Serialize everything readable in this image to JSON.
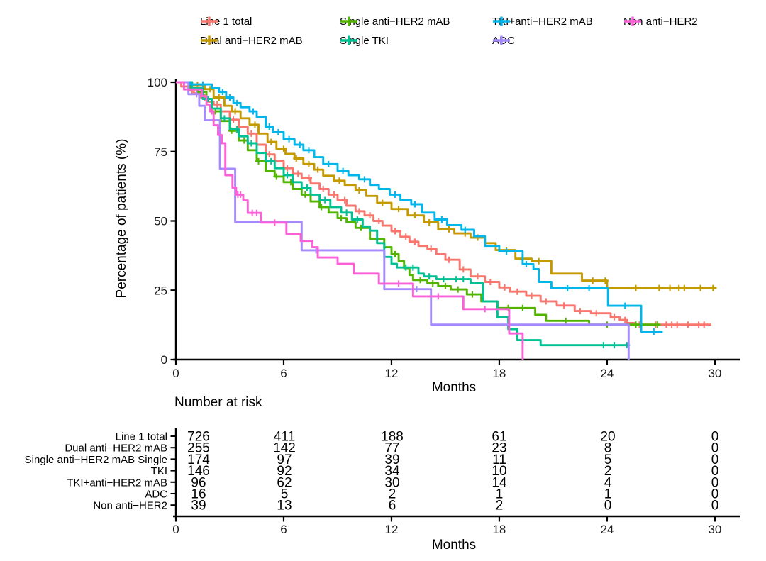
{
  "figure": {
    "y_axis_title": "Percentage of patients (%)",
    "x_axis_title": "Months",
    "risk_header": "Number at risk",
    "risk_x_axis_title": "Months",
    "legend_rows": [
      [
        "Line 1 total",
        "Single anti−HER2 mAB",
        "TKI+anti−HER2 mAB",
        "Non anti−HER2"
      ],
      [
        "Dual anti−HER2 mAB",
        "Single TKI",
        "ADC"
      ]
    ]
  },
  "chart_data": {
    "type": "line",
    "subtype": "kaplan_meier_step",
    "title": "",
    "xlabel": "Months",
    "ylabel": "Percentage of patients (%)",
    "xlim": [
      0,
      30
    ],
    "xticks": [
      0,
      6,
      12,
      18,
      24,
      30
    ],
    "ylim": [
      0,
      100
    ],
    "yticks": [
      100,
      75,
      50,
      25,
      0
    ],
    "grid": false,
    "legend_position": "top",
    "series": [
      {
        "name": "Line 1 total",
        "color": "#F8766D",
        "points": [
          [
            0,
            100
          ],
          [
            0.3,
            98.5
          ],
          [
            0.7,
            97
          ],
          [
            1,
            96
          ],
          [
            1.4,
            94.5
          ],
          [
            1.8,
            93
          ],
          [
            2.1,
            92
          ],
          [
            2.5,
            89.5
          ],
          [
            3,
            86.5
          ],
          [
            3.5,
            84
          ],
          [
            4,
            81.5
          ],
          [
            4.5,
            77.5
          ],
          [
            5,
            74
          ],
          [
            5.5,
            71.5
          ],
          [
            6,
            69
          ],
          [
            6.5,
            67
          ],
          [
            7,
            65.5
          ],
          [
            7.5,
            63.5
          ],
          [
            8,
            61.5
          ],
          [
            8.5,
            59.5
          ],
          [
            9,
            57.5
          ],
          [
            9.5,
            55.5
          ],
          [
            10,
            53.5
          ],
          [
            10.5,
            52
          ],
          [
            11,
            50
          ],
          [
            11.5,
            48.3
          ],
          [
            12,
            46.3
          ],
          [
            12.5,
            44.3
          ],
          [
            13,
            42.5
          ],
          [
            13.5,
            41
          ],
          [
            14,
            40
          ],
          [
            14.5,
            38
          ],
          [
            15,
            36
          ],
          [
            15.8,
            32.5
          ],
          [
            16.4,
            30
          ],
          [
            17.2,
            28
          ],
          [
            18,
            26
          ],
          [
            18.6,
            24.5
          ],
          [
            19.5,
            23
          ],
          [
            20.3,
            21
          ],
          [
            21.2,
            19.5
          ],
          [
            22.2,
            17.5
          ],
          [
            23.1,
            16.7
          ],
          [
            24.2,
            15.3
          ],
          [
            24.7,
            14.3
          ],
          [
            25.1,
            13.2
          ],
          [
            25.5,
            12.6
          ],
          [
            29.8,
            12.6
          ]
        ],
        "censors": [
          0.9,
          1.6,
          2.3,
          3.2,
          4.2,
          5.2,
          6.2,
          6.8,
          7.4,
          8.2,
          8.8,
          9.4,
          10.2,
          10.8,
          11.3,
          12.2,
          12.8,
          13.3,
          14.2,
          15.2,
          16,
          16.8,
          17.5,
          18.3,
          19,
          19.8,
          20.6,
          21.6,
          22.5,
          23.4,
          24.4,
          25,
          25.8,
          26.7,
          27.3,
          27.6,
          27.9,
          28.5,
          29.1,
          29.4
        ]
      },
      {
        "name": "Dual anti−HER2 mAB",
        "color": "#C49A00",
        "points": [
          [
            0,
            100
          ],
          [
            0.9,
            99
          ],
          [
            1.6,
            97.5
          ],
          [
            2.1,
            94.5
          ],
          [
            2.7,
            91.5
          ],
          [
            3.1,
            89.5
          ],
          [
            3.6,
            87
          ],
          [
            4.1,
            84.7
          ],
          [
            4.6,
            81.5
          ],
          [
            5.1,
            78.5
          ],
          [
            5.6,
            76
          ],
          [
            6.1,
            74.2
          ],
          [
            6.6,
            72.5
          ],
          [
            7.1,
            70.5
          ],
          [
            7.7,
            68.5
          ],
          [
            8.2,
            66.3
          ],
          [
            8.8,
            64.5
          ],
          [
            9.4,
            63
          ],
          [
            10,
            61
          ],
          [
            10.6,
            59
          ],
          [
            11.2,
            56.5
          ],
          [
            12,
            54.3
          ],
          [
            12.9,
            52
          ],
          [
            13.8,
            49.5
          ],
          [
            14.6,
            47
          ],
          [
            15.5,
            45.5
          ],
          [
            16.4,
            44
          ],
          [
            17.2,
            42
          ],
          [
            17.8,
            39.5
          ],
          [
            18.9,
            36.4
          ],
          [
            19.8,
            35.5
          ],
          [
            20.9,
            31
          ],
          [
            22.6,
            28.5
          ],
          [
            24,
            25.8
          ],
          [
            30.1,
            25.8
          ]
        ],
        "censors": [
          1.2,
          1.9,
          2.4,
          3.3,
          4.4,
          5.3,
          6,
          6.7,
          7.4,
          7.9,
          9.1,
          10.2,
          11.5,
          12.4,
          13.3,
          14.1,
          15.2,
          16.1,
          16.8,
          18.4,
          19.3,
          20.2,
          23.2,
          23.9,
          25.6,
          26.9,
          27.5,
          28,
          28.3,
          29.2,
          29.9
        ]
      },
      {
        "name": "Single anti−HER2 mAB",
        "color": "#53B400",
        "points": [
          [
            0,
            100
          ],
          [
            0.8,
            98
          ],
          [
            1.2,
            96.5
          ],
          [
            1.7,
            94
          ],
          [
            2,
            89.5
          ],
          [
            2.5,
            86
          ],
          [
            3,
            82.5
          ],
          [
            3.5,
            79
          ],
          [
            4,
            75.5
          ],
          [
            4.5,
            71.5
          ],
          [
            5,
            68
          ],
          [
            5.5,
            66
          ],
          [
            6,
            64
          ],
          [
            6.5,
            61.5
          ],
          [
            7,
            59.5
          ],
          [
            7.5,
            57
          ],
          [
            8,
            55
          ],
          [
            8.5,
            53
          ],
          [
            9,
            51
          ],
          [
            9.5,
            49.5
          ],
          [
            10,
            47.5
          ],
          [
            10.8,
            43.5
          ],
          [
            11.6,
            40.5
          ],
          [
            12,
            38
          ],
          [
            12.4,
            35.5
          ],
          [
            12.7,
            33
          ],
          [
            13,
            30.5
          ],
          [
            13.2,
            28.7
          ],
          [
            14,
            27.5
          ],
          [
            14.6,
            26.5
          ],
          [
            15.3,
            25.3
          ],
          [
            16.2,
            23.5
          ],
          [
            17,
            21
          ],
          [
            17.9,
            18.6
          ],
          [
            20,
            16.1
          ],
          [
            20.6,
            14
          ],
          [
            23,
            12.6
          ],
          [
            26.9,
            12.6
          ]
        ],
        "censors": [
          1.5,
          2.2,
          3.1,
          3.8,
          4.6,
          5.6,
          6.4,
          7.2,
          8.1,
          9.2,
          10.3,
          11.2,
          12.2,
          13.6,
          14.3,
          15,
          15.7,
          16.5,
          18.5,
          19.3,
          21.7,
          24,
          25.6,
          26.8
        ]
      },
      {
        "name": "Single TKI",
        "color": "#00C094",
        "points": [
          [
            0,
            100
          ],
          [
            0.9,
            98
          ],
          [
            1.5,
            94
          ],
          [
            2,
            90.5
          ],
          [
            2.5,
            87
          ],
          [
            3,
            83
          ],
          [
            3.5,
            80.5
          ],
          [
            4,
            78
          ],
          [
            4.5,
            74.5
          ],
          [
            5,
            71.5
          ],
          [
            5.5,
            69
          ],
          [
            6,
            66.5
          ],
          [
            6.5,
            64
          ],
          [
            7,
            62
          ],
          [
            7.5,
            59.5
          ],
          [
            8,
            57.5
          ],
          [
            8.6,
            55
          ],
          [
            9.2,
            53
          ],
          [
            9.8,
            50.5
          ],
          [
            10.4,
            48
          ],
          [
            10.8,
            46.5
          ],
          [
            11.2,
            42
          ],
          [
            11.6,
            37
          ],
          [
            12,
            34.5
          ],
          [
            12.3,
            33.2
          ],
          [
            13.5,
            31
          ],
          [
            13.8,
            30
          ],
          [
            14.5,
            29
          ],
          [
            16.4,
            27.5
          ],
          [
            17.1,
            21
          ],
          [
            17.9,
            15.3
          ],
          [
            18.5,
            11
          ],
          [
            19,
            7
          ],
          [
            20.3,
            5.2
          ],
          [
            25.2,
            5.2
          ]
        ],
        "censors": [
          1.8,
          2.7,
          3.4,
          4.2,
          5.3,
          6.2,
          7.3,
          8.3,
          9.5,
          10.1,
          12.8,
          13.2,
          14.1,
          14.9,
          15.6,
          16,
          23.8,
          24.4,
          25.1
        ]
      },
      {
        "name": "TKI+anti−HER2 mAB",
        "color": "#00B6EB",
        "points": [
          [
            0,
            100
          ],
          [
            0.8,
            99.2
          ],
          [
            2,
            98
          ],
          [
            2.4,
            96.5
          ],
          [
            2.8,
            94.5
          ],
          [
            3.2,
            92.5
          ],
          [
            3.6,
            91
          ],
          [
            4.1,
            89.5
          ],
          [
            4.5,
            87.5
          ],
          [
            5,
            84
          ],
          [
            5.4,
            82
          ],
          [
            6,
            79.5
          ],
          [
            6.6,
            77.5
          ],
          [
            7.1,
            75.5
          ],
          [
            7.7,
            73
          ],
          [
            8.2,
            70.5
          ],
          [
            9,
            68
          ],
          [
            9.6,
            66.5
          ],
          [
            10.2,
            65
          ],
          [
            10.8,
            63
          ],
          [
            11.3,
            61.5
          ],
          [
            11.9,
            59.5
          ],
          [
            12.5,
            57.5
          ],
          [
            13.1,
            56
          ],
          [
            13.7,
            53
          ],
          [
            14.4,
            50.5
          ],
          [
            15.1,
            48.5
          ],
          [
            15.9,
            46.8
          ],
          [
            16.6,
            44.5
          ],
          [
            17.2,
            41
          ],
          [
            18,
            39
          ],
          [
            19.3,
            34.4
          ],
          [
            19.9,
            32.6
          ],
          [
            20.2,
            28
          ],
          [
            20.9,
            25.7
          ],
          [
            24.05,
            19.4
          ],
          [
            25.9,
            10.1
          ],
          [
            27.1,
            10.1
          ]
        ],
        "censors": [
          1.5,
          2.6,
          3,
          3.4,
          4.3,
          5.2,
          5.7,
          6.3,
          6.9,
          7.4,
          8.5,
          9.3,
          10.5,
          12.2,
          13.3,
          14.8,
          16.1,
          18.4,
          19.5,
          21.8,
          23,
          25,
          26.6
        ]
      },
      {
        "name": "ADC",
        "color": "#A58AFF",
        "points": [
          [
            0,
            100
          ],
          [
            0.7,
            95.7
          ],
          [
            1.3,
            91.5
          ],
          [
            1.6,
            86.3
          ],
          [
            2.45,
            68.8
          ],
          [
            3.3,
            49.6
          ],
          [
            7,
            39.4
          ],
          [
            11.6,
            25.4
          ],
          [
            14.2,
            12.6
          ],
          [
            25.2,
            0
          ]
        ],
        "censors": [
          1.15,
          7.8,
          13.4
        ]
      },
      {
        "name": "Non anti−HER2",
        "color": "#FB61D7",
        "points": [
          [
            0,
            100
          ],
          [
            0.45,
            97.4
          ],
          [
            1.45,
            95
          ],
          [
            1.7,
            92
          ],
          [
            1.9,
            89.5
          ],
          [
            2.1,
            84.5
          ],
          [
            2.35,
            81
          ],
          [
            2.55,
            78
          ],
          [
            2.75,
            66.5
          ],
          [
            3.15,
            62
          ],
          [
            3.35,
            59.5
          ],
          [
            3.75,
            57.4
          ],
          [
            4,
            52.9
          ],
          [
            4.75,
            49.4
          ],
          [
            6.15,
            45.3
          ],
          [
            6.95,
            42.8
          ],
          [
            7.6,
            40.5
          ],
          [
            7.9,
            36.8
          ],
          [
            9,
            34.5
          ],
          [
            9.9,
            31
          ],
          [
            11.3,
            27.4
          ],
          [
            13.2,
            22.8
          ],
          [
            16,
            18.2
          ],
          [
            18.55,
            9.4
          ],
          [
            19.3,
            0
          ]
        ],
        "censors": [
          2,
          3.45,
          3.6,
          4.25,
          4.5,
          5.5,
          12.4,
          14.6,
          17.2
        ]
      }
    ],
    "number_at_risk": {
      "header": "Number at risk",
      "xlabel": "Months",
      "time_points": [
        0,
        6,
        12,
        18,
        24,
        30
      ],
      "rows": [
        {
          "label": "Line 1 total",
          "counts": [
            726,
            411,
            188,
            61,
            20,
            0
          ]
        },
        {
          "label": "Dual anti−HER2 mAB",
          "counts": [
            255,
            142,
            77,
            23,
            8,
            0
          ]
        },
        {
          "label": "Single anti−HER2 mAB Single",
          "counts": [
            174,
            97,
            39,
            11,
            5,
            0
          ]
        },
        {
          "label": "TKI",
          "counts": [
            146,
            92,
            34,
            10,
            2,
            0
          ]
        },
        {
          "label": "TKI+anti−HER2 mAB",
          "counts": [
            96,
            62,
            30,
            14,
            4,
            0
          ]
        },
        {
          "label": "ADC",
          "counts": [
            16,
            5,
            2,
            1,
            1,
            0
          ]
        },
        {
          "label": "Non anti−HER2",
          "counts": [
            39,
            13,
            6,
            2,
            0,
            0
          ]
        }
      ]
    }
  }
}
